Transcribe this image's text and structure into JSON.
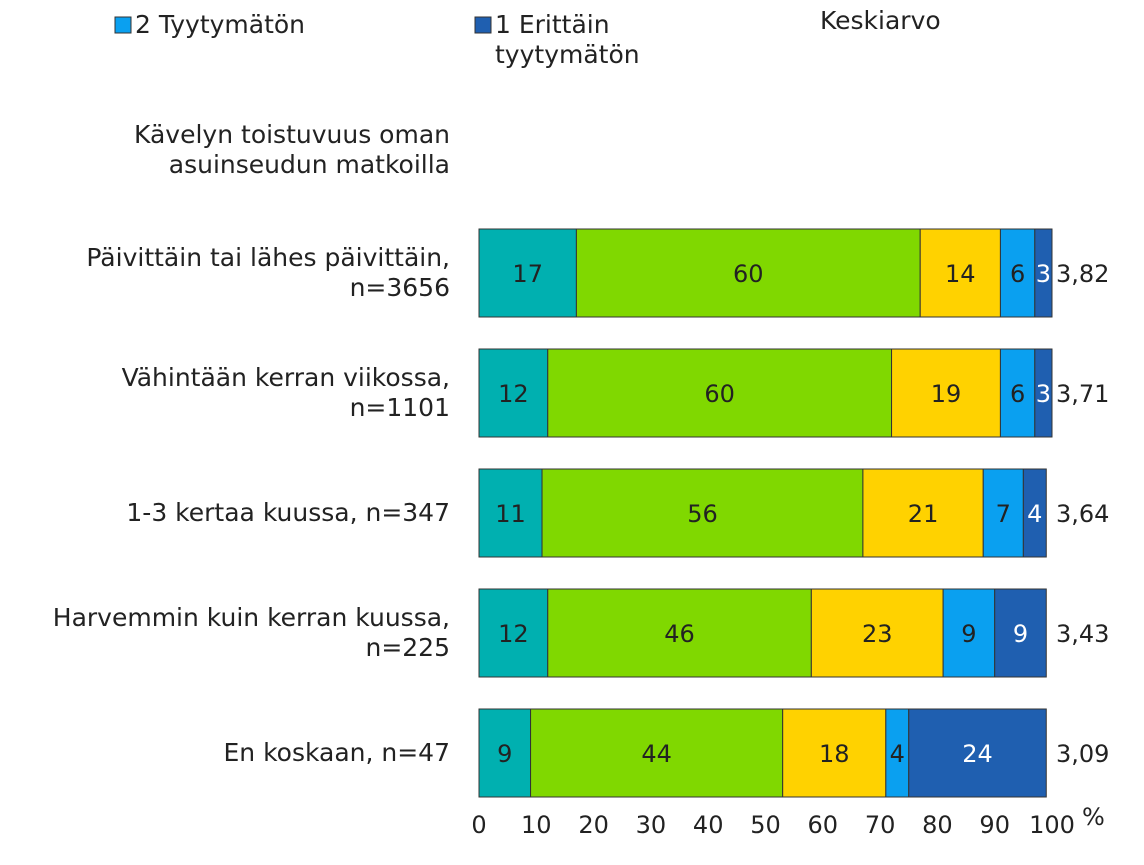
{
  "chart_data": {
    "type": "bar",
    "orientation": "horizontal",
    "stacked": true,
    "category_header": "Kävelyn toistuvuus oman asuinseudun matkoilla",
    "categories": [
      "Päivittäin tai lähes päivittäin, n=3656",
      "Vähintään kerran viikossa, n=1101",
      "1-3 kertaa kuussa, n=347",
      "Harvemmin kuin kerran kuussa, n=225",
      "En koskaan, n=47"
    ],
    "series": [
      {
        "color": "#00b0b0",
        "values": [
          17,
          12,
          11,
          12,
          9
        ]
      },
      {
        "color": "#80d800",
        "values": [
          60,
          60,
          56,
          46,
          44
        ]
      },
      {
        "color": "#ffd200",
        "values": [
          14,
          19,
          21,
          23,
          18
        ]
      },
      {
        "name": "2 Tyytymätön",
        "color": "#0aa0f0",
        "values": [
          6,
          6,
          7,
          9,
          4
        ]
      },
      {
        "name": "1 Erittäin tyytymätön",
        "color": "#1f5fb0",
        "values": [
          3,
          3,
          4,
          9,
          24
        ]
      }
    ],
    "mean_column": {
      "title": "Keskiarvo",
      "values": [
        3.82,
        3.71,
        3.64,
        3.43,
        3.09
      ],
      "value_labels": [
        "3,82",
        "3,71",
        "3,64",
        "3,43",
        "3,09"
      ]
    },
    "xlim": [
      0,
      100
    ],
    "xticks": [
      0,
      10,
      20,
      30,
      40,
      50,
      60,
      70,
      80,
      90,
      100
    ],
    "x_unit": "%"
  }
}
